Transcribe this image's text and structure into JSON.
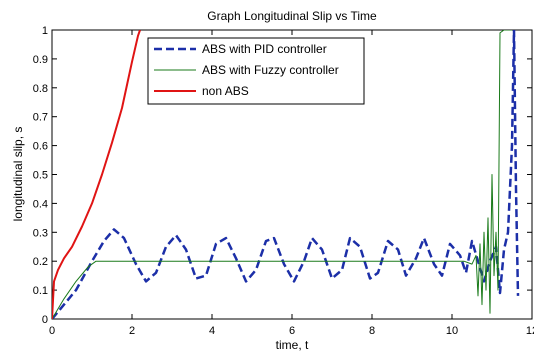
{
  "chart_data": {
    "type": "line",
    "title": "Graph Longitudinal Slip vs Time",
    "xlabel": "time, t",
    "ylabel": "longitudinal slip, s",
    "xlim": [
      0,
      12
    ],
    "ylim": [
      0,
      1
    ],
    "x_ticks": [
      "0",
      "2",
      "4",
      "6",
      "8",
      "10",
      "12"
    ],
    "y_ticks": [
      "0",
      "0.1",
      "0.2",
      "0.3",
      "0.4",
      "0.5",
      "0.6",
      "0.7",
      "0.8",
      "0.9",
      "1"
    ],
    "grid": false,
    "legend_position": "top-center",
    "series": [
      {
        "name": "ABS with PID controller",
        "color": "#1c2fa8",
        "style": "dashed",
        "x": [
          0,
          0.3,
          0.6,
          1.0,
          1.3,
          1.55,
          1.8,
          2.1,
          2.35,
          2.6,
          2.85,
          3.1,
          3.35,
          3.6,
          3.85,
          4.1,
          4.35,
          4.6,
          4.85,
          5.1,
          5.35,
          5.55,
          5.8,
          6.05,
          6.3,
          6.5,
          6.75,
          7.0,
          7.25,
          7.45,
          7.7,
          7.95,
          8.15,
          8.4,
          8.65,
          8.85,
          9.1,
          9.3,
          9.55,
          9.75,
          9.95,
          10.2,
          10.35,
          10.5,
          10.65,
          10.8,
          10.95,
          11.1,
          11.2,
          11.3,
          11.4,
          11.5,
          11.55,
          11.6,
          11.65
        ],
        "y": [
          0,
          0.05,
          0.1,
          0.2,
          0.27,
          0.31,
          0.28,
          0.19,
          0.13,
          0.16,
          0.25,
          0.29,
          0.24,
          0.14,
          0.15,
          0.26,
          0.28,
          0.21,
          0.13,
          0.17,
          0.27,
          0.28,
          0.19,
          0.13,
          0.2,
          0.28,
          0.24,
          0.14,
          0.17,
          0.28,
          0.25,
          0.14,
          0.16,
          0.27,
          0.24,
          0.15,
          0.21,
          0.28,
          0.19,
          0.15,
          0.26,
          0.22,
          0.16,
          0.27,
          0.2,
          0.13,
          0.2,
          0.25,
          0.09,
          0.24,
          0.3,
          0.6,
          1.0,
          0.45,
          0.08
        ]
      },
      {
        "name": "ABS with Fuzzy controller",
        "color": "#1a7a1a",
        "style": "solid",
        "x": [
          0,
          0.3,
          0.6,
          0.9,
          1.1,
          2,
          4,
          6,
          8,
          10,
          10.3,
          10.5,
          10.6,
          10.65,
          10.7,
          10.75,
          10.8,
          10.85,
          10.9,
          10.95,
          11.0,
          11.05,
          11.1,
          11.15,
          11.2,
          11.3,
          11.5
        ],
        "y": [
          0,
          0.07,
          0.13,
          0.18,
          0.2,
          0.2,
          0.2,
          0.2,
          0.2,
          0.2,
          0.2,
          0.19,
          0.22,
          0.08,
          0.26,
          0.05,
          0.3,
          0.1,
          0.35,
          0.02,
          0.5,
          0.15,
          0.3,
          0.1,
          0.99,
          1.0,
          1.0
        ]
      },
      {
        "name": "non ABS",
        "color": "#e01414",
        "style": "solid",
        "x": [
          0,
          0.05,
          0.15,
          0.3,
          0.5,
          0.75,
          1.0,
          1.25,
          1.5,
          1.75,
          2.0,
          2.15,
          2.2
        ],
        "y": [
          0,
          0.13,
          0.17,
          0.21,
          0.25,
          0.32,
          0.4,
          0.5,
          0.61,
          0.73,
          0.89,
          0.98,
          1.0
        ]
      }
    ]
  }
}
